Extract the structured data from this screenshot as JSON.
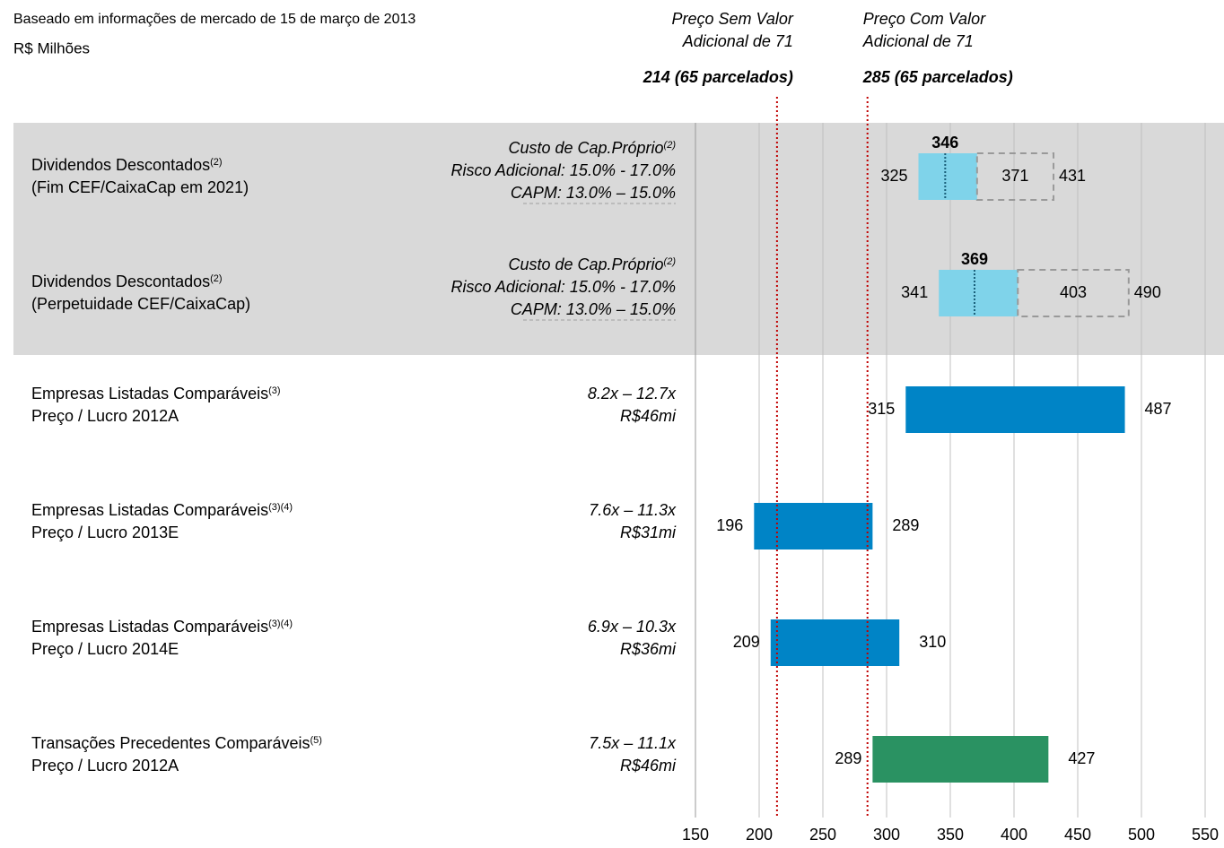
{
  "chart_data": {
    "type": "range-bar",
    "subtitle": "Baseado em informações de mercado de 15 de março de 2013",
    "unit": "R$ Milhões",
    "xlim": [
      150,
      550
    ],
    "xticks": [
      150,
      200,
      250,
      300,
      350,
      400,
      450,
      500,
      550
    ],
    "grid": true,
    "references": [
      {
        "title": [
          "Preço Sem Valor",
          "Adicional de 71"
        ],
        "label": "214 (65 parcelados)",
        "value": 214,
        "color": "#e00000"
      },
      {
        "title": [
          "Preço Com Valor",
          "Adicional de 71"
        ],
        "label": "285 (65 parcelados)",
        "value": 285,
        "color": "#e00000"
      }
    ],
    "rows": [
      {
        "label": [
          "Dividendos Descontados",
          "(Fim CEF/CaixaCap em 2021)"
        ],
        "label_sup": "(2)",
        "notes": [
          "Custo de Cap.Próprio",
          "Risco Adicional: 15.0% - 17.0%",
          "CAPM: 13.0% – 15.0%"
        ],
        "notes_sup": "(2)",
        "low": 325,
        "mid": 346,
        "high": 371,
        "ext": 431,
        "color": "#7fd3ea"
      },
      {
        "label": [
          "Dividendos Descontados",
          "(Perpetuidade CEF/CaixaCap)"
        ],
        "label_sup": "(2)",
        "notes": [
          "Custo de Cap.Próprio",
          "Risco Adicional: 15.0% - 17.0%",
          "CAPM: 13.0% – 15.0%"
        ],
        "notes_sup": "(2)",
        "low": 341,
        "mid": 369,
        "high": 403,
        "ext": 490,
        "color": "#7fd3ea"
      },
      {
        "label": [
          "Empresas Listadas Comparáveis",
          "Preço / Lucro 2012A"
        ],
        "label_sup": "(3)",
        "notes": [
          "8.2x – 12.7x",
          "R$46mi"
        ],
        "low": 315,
        "high": 487,
        "color": "#0084c6"
      },
      {
        "label": [
          "Empresas Listadas Comparáveis",
          "Preço / Lucro 2013E"
        ],
        "label_sup": "(3)(4)",
        "notes": [
          "7.6x – 11.3x",
          "R$31mi"
        ],
        "low": 196,
        "high": 289,
        "color": "#0084c6"
      },
      {
        "label": [
          "Empresas Listadas Comparáveis",
          "Preço / Lucro 2014E"
        ],
        "label_sup": "(3)(4)",
        "notes": [
          "6.9x – 10.3x",
          "R$36mi"
        ],
        "low": 209,
        "high": 310,
        "color": "#0084c6"
      },
      {
        "label": [
          "Transações Precedentes Comparáveis",
          "Preço / Lucro 2012A"
        ],
        "label_sup": "(5)",
        "notes": [
          "7.5x – 11.1x",
          "R$46mi"
        ],
        "low": 289,
        "high": 427,
        "color": "#2a9262"
      }
    ]
  }
}
